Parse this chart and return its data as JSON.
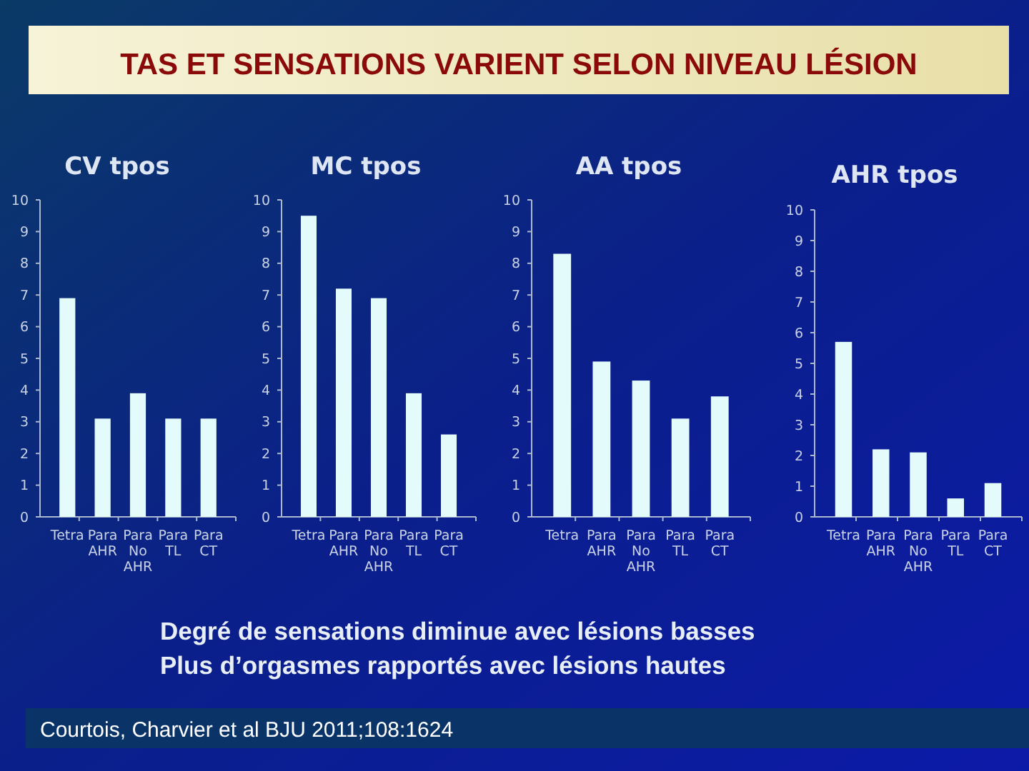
{
  "chart_data": [
    {
      "type": "bar",
      "title": "CV tpos",
      "categories": [
        "Tetra",
        "Para AHR",
        "Para No AHR",
        "Para TL",
        "Para CT"
      ],
      "values": [
        6.9,
        3.1,
        3.9,
        3.1,
        3.1
      ],
      "color": "#e4fbfc",
      "ylim": [
        0,
        10
      ],
      "yticks": [
        0,
        1,
        2,
        3,
        4,
        5,
        6,
        7,
        8,
        9,
        10
      ]
    },
    {
      "type": "bar",
      "title": "MC tpos",
      "categories": [
        "Tetra",
        "Para AHR",
        "Para No AHR",
        "Para TL",
        "Para CT"
      ],
      "values": [
        9.5,
        7.2,
        6.9,
        3.9,
        2.6
      ],
      "color": "#e4fbfc",
      "ylim": [
        0,
        10
      ],
      "yticks": [
        0,
        1,
        2,
        3,
        4,
        5,
        6,
        7,
        8,
        9,
        10
      ]
    },
    {
      "type": "bar",
      "title": "AA tpos",
      "categories": [
        "Tetra",
        "Para AHR",
        "Para No AHR",
        "Para TL",
        "Para CT"
      ],
      "values": [
        8.3,
        4.9,
        4.3,
        3.1,
        3.8
      ],
      "color": "#e4fbfc",
      "ylim": [
        0,
        10
      ],
      "yticks": [
        0,
        1,
        2,
        3,
        4,
        5,
        6,
        7,
        8,
        9,
        10
      ]
    },
    {
      "type": "bar",
      "title": "AHR tpos",
      "categories": [
        "Tetra",
        "Para AHR",
        "Para No AHR",
        "Para TL",
        "Para CT"
      ],
      "values": [
        5.7,
        2.2,
        2.1,
        0.6,
        1.1
      ],
      "color": "#e4fbfc",
      "ylim": [
        0,
        10
      ],
      "yticks": [
        0,
        1,
        2,
        3,
        4,
        5,
        6,
        7,
        8,
        9,
        10
      ]
    },
    {
      "type": "other",
      "title": "TAS ET SENSATIONS VARIENT SELON NIVEAU LÉSION",
      "annotations": [
        "Degré de sensations diminue avec lésions basses",
        "Plus d’orgasmes rapportés avec lésions hautes",
        "Courtois, Charvier et al BJU 2011;108:1624"
      ]
    }
  ]
}
